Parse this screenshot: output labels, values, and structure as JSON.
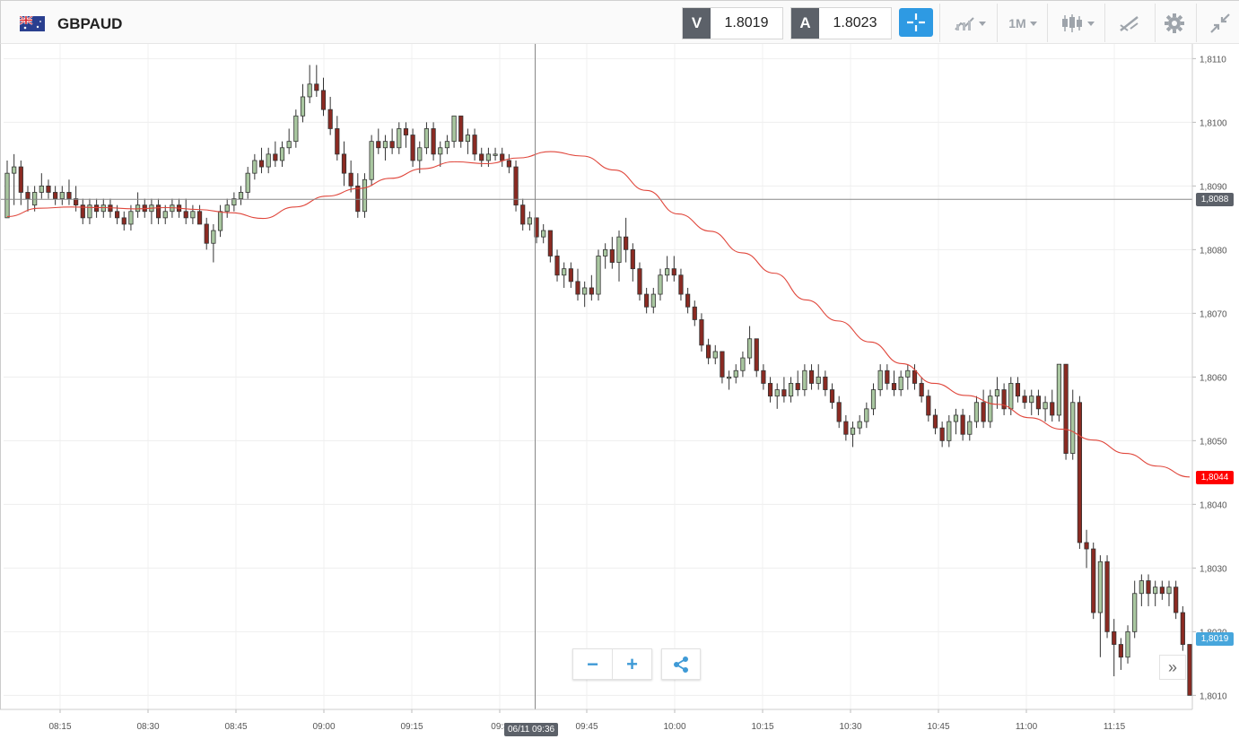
{
  "header": {
    "symbol": "GBPAUD",
    "flag_icon": "gb-au-flag-icon",
    "sell_letter": "V",
    "sell_price": "1.8019",
    "buy_letter": "A",
    "buy_price": "1.8023",
    "timeframe_label": "1M",
    "buttons": [
      "crosshair-icon",
      "chart-type-icon",
      "timeframe-select",
      "candlestick-icon",
      "drawing-tools-icon",
      "gear-icon",
      "collapse-icon"
    ]
  },
  "colors": {
    "up_candle": "#a9c7a0",
    "down_candle": "#8b2a22",
    "moving_average": "#e0463b",
    "accent": "#2e9ae3",
    "current_price_tag": "#ff0000",
    "ask_tag": "#47a6dc",
    "crosshair_tag": "#5c6169"
  },
  "chart_data": {
    "type": "candlestick",
    "symbol": "GBPAUD",
    "interval": "1M",
    "x_tick_labels": [
      "08:15",
      "08:30",
      "08:45",
      "09:00",
      "09:15",
      "09:3",
      "09:45",
      "10:00",
      "10:15",
      "10:30",
      "10:45",
      "11:00",
      "11:15"
    ],
    "y_tick_labels": [
      "1,8110",
      "1,8100",
      "1,8090",
      "1,8080",
      "1,8070",
      "1,8060",
      "1,8050",
      "1,8040",
      "1,8030",
      "1,8020",
      "1,8010"
    ],
    "ylim": [
      1.80085,
      1.81116
    ],
    "grid": true,
    "crosshair": {
      "time_label": "06/11 09:36",
      "price_label": "1,8088",
      "price": 1.80879
    },
    "current_price_label": "1,8044",
    "current_price": 1.80443,
    "ask_price_label": "1,8019",
    "ask_price": 1.80189,
    "candles": [
      [
        1.8085,
        1.8094,
        1.8085,
        1.8092
      ],
      [
        1.8092,
        1.8095,
        1.8087,
        1.8093
      ],
      [
        1.8093,
        1.8094,
        1.8087,
        1.8089
      ],
      [
        1.8089,
        1.809,
        1.8086,
        1.8088
      ],
      [
        1.8087,
        1.809,
        1.8086,
        1.8089
      ],
      [
        1.8089,
        1.8092,
        1.8088,
        1.809
      ],
      [
        1.809,
        1.8091,
        1.8088,
        1.8089
      ],
      [
        1.8089,
        1.809,
        1.8087,
        1.8088
      ],
      [
        1.8088,
        1.809,
        1.8087,
        1.8089
      ],
      [
        1.8089,
        1.8091,
        1.8087,
        1.8088
      ],
      [
        1.8088,
        1.809,
        1.8086,
        1.8087
      ],
      [
        1.8087,
        1.8088,
        1.8084,
        1.8085
      ],
      [
        1.8085,
        1.8088,
        1.8084,
        1.8087
      ],
      [
        1.8087,
        1.8088,
        1.8085,
        1.8086
      ],
      [
        1.8086,
        1.8088,
        1.8085,
        1.8087
      ],
      [
        1.8087,
        1.8088,
        1.8085,
        1.8086
      ],
      [
        1.8086,
        1.8087,
        1.8084,
        1.8085
      ],
      [
        1.8085,
        1.8086,
        1.8083,
        1.8084
      ],
      [
        1.8084,
        1.8087,
        1.8083,
        1.8086
      ],
      [
        1.8086,
        1.8089,
        1.8085,
        1.8087
      ],
      [
        1.8087,
        1.8088,
        1.8085,
        1.8086
      ],
      [
        1.8086,
        1.8088,
        1.8084,
        1.8087
      ],
      [
        1.8087,
        1.8088,
        1.8084,
        1.8085
      ],
      [
        1.8085,
        1.8087,
        1.8084,
        1.8086
      ],
      [
        1.8086,
        1.8088,
        1.8085,
        1.8087
      ],
      [
        1.8087,
        1.8088,
        1.8085,
        1.8086
      ],
      [
        1.8086,
        1.8088,
        1.8084,
        1.8085
      ],
      [
        1.8085,
        1.8087,
        1.8084,
        1.8086
      ],
      [
        1.8086,
        1.8087,
        1.8084,
        1.8084
      ],
      [
        1.8084,
        1.8085,
        1.808,
        1.8081
      ],
      [
        1.8081,
        1.8084,
        1.8078,
        1.8083
      ],
      [
        1.8083,
        1.8087,
        1.8082,
        1.8086
      ],
      [
        1.8086,
        1.8088,
        1.8085,
        1.8087
      ],
      [
        1.8087,
        1.8089,
        1.8086,
        1.8088
      ],
      [
        1.8088,
        1.809,
        1.8087,
        1.8089
      ],
      [
        1.8089,
        1.8093,
        1.8088,
        1.8092
      ],
      [
        1.8092,
        1.8095,
        1.8091,
        1.8094
      ],
      [
        1.8094,
        1.8096,
        1.8092,
        1.8093
      ],
      [
        1.8093,
        1.8096,
        1.8092,
        1.8095
      ],
      [
        1.8095,
        1.8097,
        1.8093,
        1.8094
      ],
      [
        1.8094,
        1.8097,
        1.8093,
        1.8096
      ],
      [
        1.8096,
        1.8099,
        1.8095,
        1.8097
      ],
      [
        1.8097,
        1.8102,
        1.8096,
        1.8101
      ],
      [
        1.8101,
        1.8106,
        1.81,
        1.8104
      ],
      [
        1.8104,
        1.8109,
        1.8103,
        1.8106
      ],
      [
        1.8106,
        1.8109,
        1.8104,
        1.8105
      ],
      [
        1.8105,
        1.8107,
        1.8101,
        1.8102
      ],
      [
        1.8102,
        1.8104,
        1.8098,
        1.8099
      ],
      [
        1.8099,
        1.8101,
        1.8094,
        1.8095
      ],
      [
        1.8095,
        1.8097,
        1.809,
        1.8092
      ],
      [
        1.8092,
        1.8094,
        1.8089,
        1.809
      ],
      [
        1.809,
        1.8092,
        1.8085,
        1.8086
      ],
      [
        1.8086,
        1.8092,
        1.8085,
        1.8091
      ],
      [
        1.8091,
        1.8098,
        1.809,
        1.8097
      ],
      [
        1.8097,
        1.8099,
        1.8095,
        1.8096
      ],
      [
        1.8096,
        1.8098,
        1.8094,
        1.8097
      ],
      [
        1.8097,
        1.8099,
        1.8095,
        1.8096
      ],
      [
        1.8096,
        1.81,
        1.8095,
        1.8099
      ],
      [
        1.8099,
        1.81,
        1.8096,
        1.8098
      ],
      [
        1.8098,
        1.8099,
        1.8093,
        1.8094
      ],
      [
        1.8094,
        1.8097,
        1.8092,
        1.8096
      ],
      [
        1.8096,
        1.81,
        1.8095,
        1.8099
      ],
      [
        1.8099,
        1.81,
        1.8094,
        1.8095
      ],
      [
        1.8095,
        1.8097,
        1.8093,
        1.8096
      ],
      [
        1.8096,
        1.8098,
        1.8095,
        1.8097
      ],
      [
        1.8097,
        1.8101,
        1.8096,
        1.8101
      ],
      [
        1.8101,
        1.8101,
        1.8096,
        1.8097
      ],
      [
        1.8097,
        1.8099,
        1.8095,
        1.8098
      ],
      [
        1.8098,
        1.8099,
        1.8094,
        1.8095
      ],
      [
        1.8095,
        1.8096,
        1.8093,
        1.8094
      ],
      [
        1.8094,
        1.8096,
        1.8093,
        1.8095
      ],
      [
        1.8095,
        1.8096,
        1.8094,
        1.8095
      ],
      [
        1.8095,
        1.8096,
        1.8093,
        1.8094
      ],
      [
        1.8094,
        1.8095,
        1.8092,
        1.8093
      ],
      [
        1.8093,
        1.8094,
        1.8086,
        1.8087
      ],
      [
        1.8087,
        1.8088,
        1.8083,
        1.8084
      ],
      [
        1.8084,
        1.8086,
        1.8083,
        1.8085
      ],
      [
        1.8085,
        1.8085,
        1.8081,
        1.8082
      ],
      [
        1.8082,
        1.8084,
        1.8081,
        1.8083
      ],
      [
        1.8083,
        1.8083,
        1.8078,
        1.8079
      ],
      [
        1.8079,
        1.808,
        1.8075,
        1.8076
      ],
      [
        1.8076,
        1.8078,
        1.8074,
        1.8077
      ],
      [
        1.8077,
        1.8078,
        1.8074,
        1.8075
      ],
      [
        1.8075,
        1.8077,
        1.8072,
        1.8073
      ],
      [
        1.8073,
        1.8075,
        1.8071,
        1.8074
      ],
      [
        1.8074,
        1.8076,
        1.8072,
        1.8073
      ],
      [
        1.8073,
        1.808,
        1.8072,
        1.8079
      ],
      [
        1.8079,
        1.8081,
        1.8077,
        1.808
      ],
      [
        1.808,
        1.8082,
        1.8077,
        1.8078
      ],
      [
        1.8078,
        1.8083,
        1.8075,
        1.8082
      ],
      [
        1.8082,
        1.8085,
        1.8078,
        1.808
      ],
      [
        1.808,
        1.8081,
        1.8075,
        1.8077
      ],
      [
        1.8077,
        1.8078,
        1.8072,
        1.8073
      ],
      [
        1.8073,
        1.8074,
        1.807,
        1.8071
      ],
      [
        1.8071,
        1.8074,
        1.807,
        1.8073
      ],
      [
        1.8073,
        1.8077,
        1.8072,
        1.8076
      ],
      [
        1.8076,
        1.8079,
        1.8075,
        1.8077
      ],
      [
        1.8077,
        1.8079,
        1.8075,
        1.8076
      ],
      [
        1.8076,
        1.8077,
        1.8072,
        1.8073
      ],
      [
        1.8073,
        1.8074,
        1.807,
        1.8071
      ],
      [
        1.8071,
        1.8072,
        1.8068,
        1.8069
      ],
      [
        1.8069,
        1.807,
        1.8064,
        1.8065
      ],
      [
        1.8065,
        1.8066,
        1.8062,
        1.8063
      ],
      [
        1.8063,
        1.8065,
        1.8062,
        1.8064
      ],
      [
        1.8064,
        1.8064,
        1.8059,
        1.806
      ],
      [
        1.806,
        1.8061,
        1.8058,
        1.806
      ],
      [
        1.806,
        1.8062,
        1.8059,
        1.8061
      ],
      [
        1.8061,
        1.8064,
        1.806,
        1.8063
      ],
      [
        1.8063,
        1.8068,
        1.8062,
        1.8066
      ],
      [
        1.8066,
        1.8066,
        1.806,
        1.8061
      ],
      [
        1.8061,
        1.8062,
        1.8058,
        1.8059
      ],
      [
        1.8059,
        1.806,
        1.8056,
        1.8057
      ],
      [
        1.8057,
        1.8059,
        1.8055,
        1.8058
      ],
      [
        1.8058,
        1.806,
        1.8056,
        1.8057
      ],
      [
        1.8057,
        1.806,
        1.8056,
        1.8059
      ],
      [
        1.8059,
        1.8061,
        1.8057,
        1.8058
      ],
      [
        1.8058,
        1.8062,
        1.8057,
        1.8061
      ],
      [
        1.8061,
        1.8062,
        1.8058,
        1.8059
      ],
      [
        1.8059,
        1.8062,
        1.8058,
        1.806
      ],
      [
        1.806,
        1.8061,
        1.8057,
        1.8058
      ],
      [
        1.8058,
        1.8059,
        1.8055,
        1.8056
      ],
      [
        1.8056,
        1.8057,
        1.8052,
        1.8053
      ],
      [
        1.8053,
        1.8054,
        1.805,
        1.8051
      ],
      [
        1.8051,
        1.8053,
        1.8049,
        1.8052
      ],
      [
        1.8052,
        1.8054,
        1.8051,
        1.8053
      ],
      [
        1.8053,
        1.8056,
        1.8052,
        1.8055
      ],
      [
        1.8055,
        1.8059,
        1.8054,
        1.8058
      ],
      [
        1.8058,
        1.8062,
        1.8057,
        1.8061
      ],
      [
        1.8061,
        1.8062,
        1.8058,
        1.8059
      ],
      [
        1.8059,
        1.8061,
        1.8057,
        1.8058
      ],
      [
        1.8058,
        1.8061,
        1.8057,
        1.806
      ],
      [
        1.806,
        1.8062,
        1.8058,
        1.8061
      ],
      [
        1.8061,
        1.8062,
        1.8058,
        1.8059
      ],
      [
        1.8059,
        1.806,
        1.8056,
        1.8057
      ],
      [
        1.8057,
        1.8058,
        1.8053,
        1.8054
      ],
      [
        1.8054,
        1.8055,
        1.8051,
        1.8052
      ],
      [
        1.8052,
        1.8053,
        1.8049,
        1.805
      ],
      [
        1.805,
        1.8054,
        1.8049,
        1.8053
      ],
      [
        1.8053,
        1.8055,
        1.8051,
        1.8054
      ],
      [
        1.8054,
        1.8055,
        1.805,
        1.8051
      ],
      [
        1.8051,
        1.8054,
        1.805,
        1.8053
      ],
      [
        1.8053,
        1.8057,
        1.8052,
        1.8056
      ],
      [
        1.8056,
        1.8058,
        1.8052,
        1.8053
      ],
      [
        1.8053,
        1.8058,
        1.8052,
        1.8057
      ],
      [
        1.8057,
        1.806,
        1.8055,
        1.8058
      ],
      [
        1.8058,
        1.8059,
        1.8054,
        1.8055
      ],
      [
        1.8055,
        1.806,
        1.8054,
        1.8059
      ],
      [
        1.8059,
        1.806,
        1.8056,
        1.8057
      ],
      [
        1.8057,
        1.8058,
        1.8055,
        1.8056
      ],
      [
        1.8056,
        1.8058,
        1.8054,
        1.8057
      ],
      [
        1.8057,
        1.8058,
        1.8054,
        1.8055
      ],
      [
        1.8055,
        1.8057,
        1.8053,
        1.8056
      ],
      [
        1.8056,
        1.8058,
        1.8053,
        1.8054
      ],
      [
        1.8054,
        1.8062,
        1.8053,
        1.8062
      ],
      [
        1.8062,
        1.8062,
        1.8047,
        1.8048
      ],
      [
        1.8048,
        1.8058,
        1.8047,
        1.8056
      ],
      [
        1.8056,
        1.8057,
        1.8033,
        1.8034
      ],
      [
        1.8034,
        1.8036,
        1.803,
        1.8033
      ],
      [
        1.8033,
        1.8034,
        1.8022,
        1.8023
      ],
      [
        1.8023,
        1.8032,
        1.8016,
        1.8031
      ],
      [
        1.8031,
        1.8032,
        1.8019,
        1.802
      ],
      [
        1.802,
        1.8022,
        1.8013,
        1.8018
      ],
      [
        1.8018,
        1.8019,
        1.8014,
        1.8016
      ],
      [
        1.8016,
        1.8021,
        1.8015,
        1.802
      ],
      [
        1.802,
        1.8028,
        1.8019,
        1.8026
      ],
      [
        1.8026,
        1.8029,
        1.8024,
        1.8028
      ],
      [
        1.8028,
        1.8029,
        1.8024,
        1.8026
      ],
      [
        1.8026,
        1.8028,
        1.8024,
        1.8027
      ],
      [
        1.8027,
        1.8028,
        1.8025,
        1.8026
      ],
      [
        1.8026,
        1.8028,
        1.8024,
        1.8027
      ],
      [
        1.8027,
        1.8028,
        1.8022,
        1.8023
      ],
      [
        1.8023,
        1.8024,
        1.8017,
        1.8018
      ],
      [
        1.8018,
        1.8018,
        1.801,
        1.801
      ]
    ],
    "moving_average": [
      1.80852,
      1.80865,
      1.80867,
      1.80866,
      1.80864,
      1.80866,
      1.80863,
      1.80858,
      1.80849,
      1.80867,
      1.80884,
      1.80896,
      1.80912,
      1.80927,
      1.80938,
      1.80935,
      1.80944,
      1.80954,
      1.80947,
      1.80925,
      1.80893,
      1.80856,
      1.80829,
      1.80795,
      1.80763,
      1.80721,
      1.80688,
      1.80655,
      1.80621,
      1.8059,
      1.80571,
      1.80557,
      1.80536,
      1.80518,
      1.80501,
      1.8048,
      1.8046,
      1.80443
    ]
  },
  "controls": {
    "zoom_out_label": "−",
    "zoom_in_label": "+",
    "share_icon": "share-icon",
    "scroll_label": "»"
  }
}
